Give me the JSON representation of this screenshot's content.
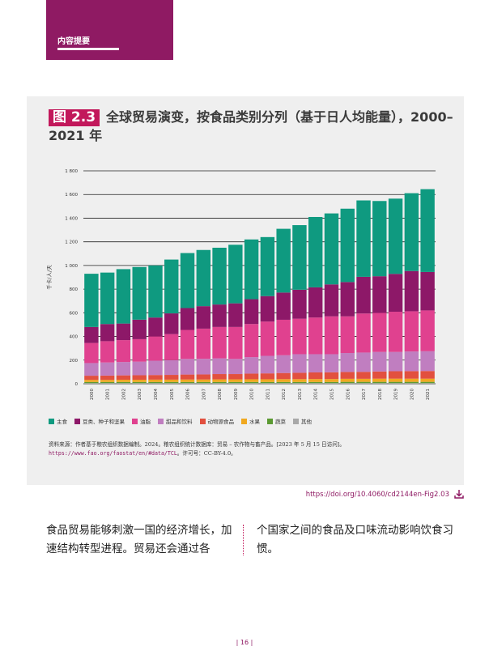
{
  "header": {
    "label": "内容提要"
  },
  "figure": {
    "badge": "图 2.3",
    "title": "全球贸易演变，按食品类别分列（基于日人均能量），2000–2021 年"
  },
  "colors": {
    "staples": "#0f9a80",
    "pulses": "#8d1868",
    "oils": "#e0418f",
    "sugar": "#c07ec0",
    "animal": "#e2503f",
    "fruit": "#f0a81f",
    "veg": "#5b9a32",
    "other": "#a8a8a8",
    "brand": "#8f1a63"
  },
  "chart_data": {
    "type": "bar",
    "stacked": true,
    "title": "全球贸易演变，按食品类别分列（基于日人均能量），2000–2021 年",
    "ylabel": "千卡/人/天",
    "xlabel": "",
    "ylim": [
      0,
      1800
    ],
    "yticks": [
      0,
      200,
      400,
      600,
      800,
      1000,
      1200,
      1400,
      1600,
      1800
    ],
    "ytick_labels": [
      "0",
      "200",
      "400",
      "600",
      "800",
      "1 000",
      "1 200",
      "1 400",
      "1 600",
      "1 800"
    ],
    "categories": [
      "2000",
      "2001",
      "2002",
      "2003",
      "2004",
      "2005",
      "2006",
      "2007",
      "2008",
      "2009",
      "2010",
      "2011",
      "2012",
      "2013",
      "2014",
      "2015",
      "2016",
      "2017",
      "2018",
      "2019",
      "2020",
      "2021"
    ],
    "series": [
      {
        "key": "other",
        "name": "其他",
        "color_key": "other",
        "values": [
          5,
          5,
          5,
          5,
          5,
          5,
          5,
          5,
          5,
          5,
          5,
          5,
          5,
          5,
          5,
          5,
          5,
          5,
          5,
          5,
          5,
          5
        ]
      },
      {
        "key": "veg",
        "name": "蔬菜",
        "color_key": "veg",
        "values": [
          10,
          10,
          10,
          10,
          10,
          10,
          10,
          10,
          10,
          10,
          10,
          10,
          10,
          10,
          10,
          10,
          11,
          11,
          11,
          11,
          11,
          11
        ]
      },
      {
        "key": "fruit",
        "name": "水果",
        "color_key": "fruit",
        "values": [
          18,
          18,
          19,
          19,
          20,
          20,
          21,
          21,
          22,
          22,
          23,
          23,
          24,
          24,
          25,
          25,
          26,
          26,
          27,
          27,
          27,
          27
        ]
      },
      {
        "key": "animal",
        "name": "动物源食品",
        "color_key": "animal",
        "values": [
          35,
          36,
          37,
          38,
          39,
          40,
          42,
          43,
          45,
          45,
          48,
          50,
          52,
          54,
          56,
          57,
          58,
          59,
          61,
          63,
          64,
          65
        ]
      },
      {
        "key": "sugar",
        "name": "甜品和饮料",
        "color_key": "sugar",
        "values": [
          107,
          111,
          113,
          115,
          121,
          125,
          132,
          132,
          133,
          128,
          139,
          148,
          150,
          157,
          154,
          153,
          160,
          163,
          165,
          163,
          166,
          167
        ]
      },
      {
        "key": "oils",
        "name": "油脂",
        "color_key": "oils",
        "values": [
          170,
          180,
          185,
          190,
          205,
          220,
          245,
          255,
          265,
          270,
          280,
          290,
          300,
          300,
          310,
          320,
          310,
          330,
          330,
          340,
          340,
          345
        ]
      },
      {
        "key": "pulses",
        "name": "豆类、种子和坚果",
        "color_key": "pulses",
        "values": [
          135,
          145,
          140,
          165,
          160,
          175,
          185,
          190,
          190,
          200,
          210,
          215,
          230,
          245,
          255,
          270,
          290,
          310,
          310,
          320,
          340,
          325
        ]
      },
      {
        "key": "staples",
        "name": "主食",
        "color_key": "staples",
        "values": [
          450,
          435,
          460,
          445,
          440,
          455,
          465,
          475,
          480,
          495,
          505,
          499,
          539,
          546,
          595,
          600,
          620,
          646,
          636,
          636,
          658,
          700
        ]
      }
    ],
    "legend": [
      "主食",
      "豆类、种子和坚果",
      "油脂",
      "甜品和饮料",
      "动物源食品",
      "水果",
      "蔬菜",
      "其他"
    ],
    "legend_position": "bottom-left"
  },
  "source": {
    "text": "资料来源：作者基于粮农组织数据编制。2024。粮农组织统计数据库：贸易 – 农作物与畜产品。[2023 年 5 月 15 日访问]。",
    "link": "https://www.fao.org/faostat/en/#data/TCL",
    "license": "。许可号：CC-BY-4.0。"
  },
  "doi": "https://doi.org/10.4060/cd2144en-Fig2.03",
  "body": {
    "left": "食品贸易能够刺激一国的经济增长，加速结构转型进程。贸易还会通过各",
    "right": "个国家之间的食品及口味流动影响饮食习惯。"
  },
  "page_number": "| 16 |"
}
